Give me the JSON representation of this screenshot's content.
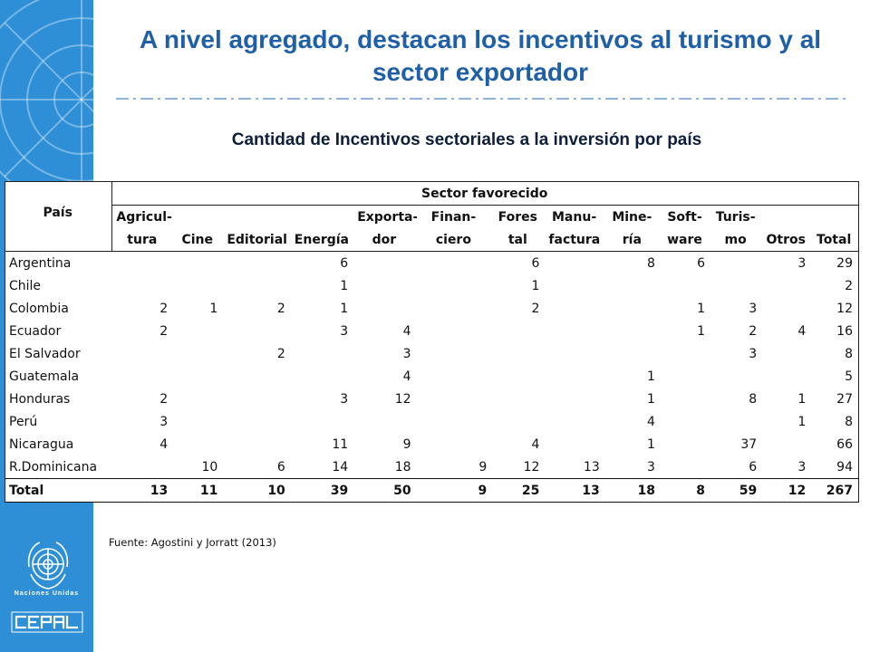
{
  "title": "A nivel agregado, destacan los incentivos al turismo y al sector exportador",
  "subtitle": "Cantidad de Incentivos sectoriales a la inversión por país",
  "table": {
    "country_header": "País",
    "group_header": "Sector favorecido",
    "columns": [
      {
        "line1": "Agricul-",
        "line2": "tura"
      },
      {
        "line1": "",
        "line2": "Cine"
      },
      {
        "line1": "",
        "line2": "Editorial"
      },
      {
        "line1": "",
        "line2": "Energía"
      },
      {
        "line1": "Exporta-",
        "line2": "dor"
      },
      {
        "line1": "Finan-",
        "line2": "ciero"
      },
      {
        "line1": "Fores",
        "line2": "tal"
      },
      {
        "line1": "Manu-",
        "line2": "factura"
      },
      {
        "line1": "Mine-",
        "line2": "ría"
      },
      {
        "line1": "Soft-",
        "line2": "ware"
      },
      {
        "line1": "Turis-",
        "line2": "mo"
      },
      {
        "line1": "",
        "line2": "Otros"
      },
      {
        "line1": "",
        "line2": "Total"
      }
    ],
    "rows": [
      {
        "country": "Argentina",
        "values": [
          "",
          "",
          "",
          "6",
          "",
          "",
          "6",
          "",
          "8",
          "6",
          "",
          "3",
          "29"
        ]
      },
      {
        "country": "Chile",
        "values": [
          "",
          "",
          "",
          "1",
          "",
          "",
          "1",
          "",
          "",
          "",
          "",
          "",
          "2"
        ]
      },
      {
        "country": "Colombia",
        "values": [
          "2",
          "1",
          "2",
          "1",
          "",
          "",
          "2",
          "",
          "",
          "1",
          "3",
          "",
          "12"
        ]
      },
      {
        "country": "Ecuador",
        "values": [
          "2",
          "",
          "",
          "3",
          "4",
          "",
          "",
          "",
          "",
          "1",
          "2",
          "4",
          "16"
        ]
      },
      {
        "country": "El Salvador",
        "values": [
          "",
          "",
          "2",
          "",
          "3",
          "",
          "",
          "",
          "",
          "",
          "3",
          "",
          "8"
        ]
      },
      {
        "country": "Guatemala",
        "values": [
          "",
          "",
          "",
          "",
          "4",
          "",
          "",
          "",
          "1",
          "",
          "",
          "",
          "5"
        ]
      },
      {
        "country": "Honduras",
        "values": [
          "2",
          "",
          "",
          "3",
          "12",
          "",
          "",
          "",
          "1",
          "",
          "8",
          "1",
          "27"
        ]
      },
      {
        "country": "Perú",
        "values": [
          "3",
          "",
          "",
          "",
          "",
          "",
          "",
          "",
          "4",
          "",
          "",
          "1",
          "8"
        ]
      },
      {
        "country": "Nicaragua",
        "values": [
          "4",
          "",
          "",
          "11",
          "9",
          "",
          "4",
          "",
          "1",
          "",
          "37",
          "",
          "66"
        ]
      },
      {
        "country": "R.Dominicana",
        "values": [
          "",
          "10",
          "6",
          "14",
          "18",
          "9",
          "12",
          "13",
          "3",
          "",
          "6",
          "3",
          "94"
        ]
      }
    ],
    "total": {
      "country": "Total",
      "values": [
        "13",
        "11",
        "10",
        "39",
        "50",
        "9",
        "25",
        "13",
        "18",
        "8",
        "59",
        "12",
        "267"
      ]
    }
  },
  "source": "Fuente: Agostini y Jorratt (2013)",
  "branding": {
    "un_label": "Naciones Unidas",
    "cepal_logo": "CEPAL",
    "emblem_icon": "un-emblem-icon"
  },
  "colors": {
    "sidebar": "#2e8fd6",
    "title": "#1f5fa8",
    "subtitle": "#0d1f3a"
  }
}
